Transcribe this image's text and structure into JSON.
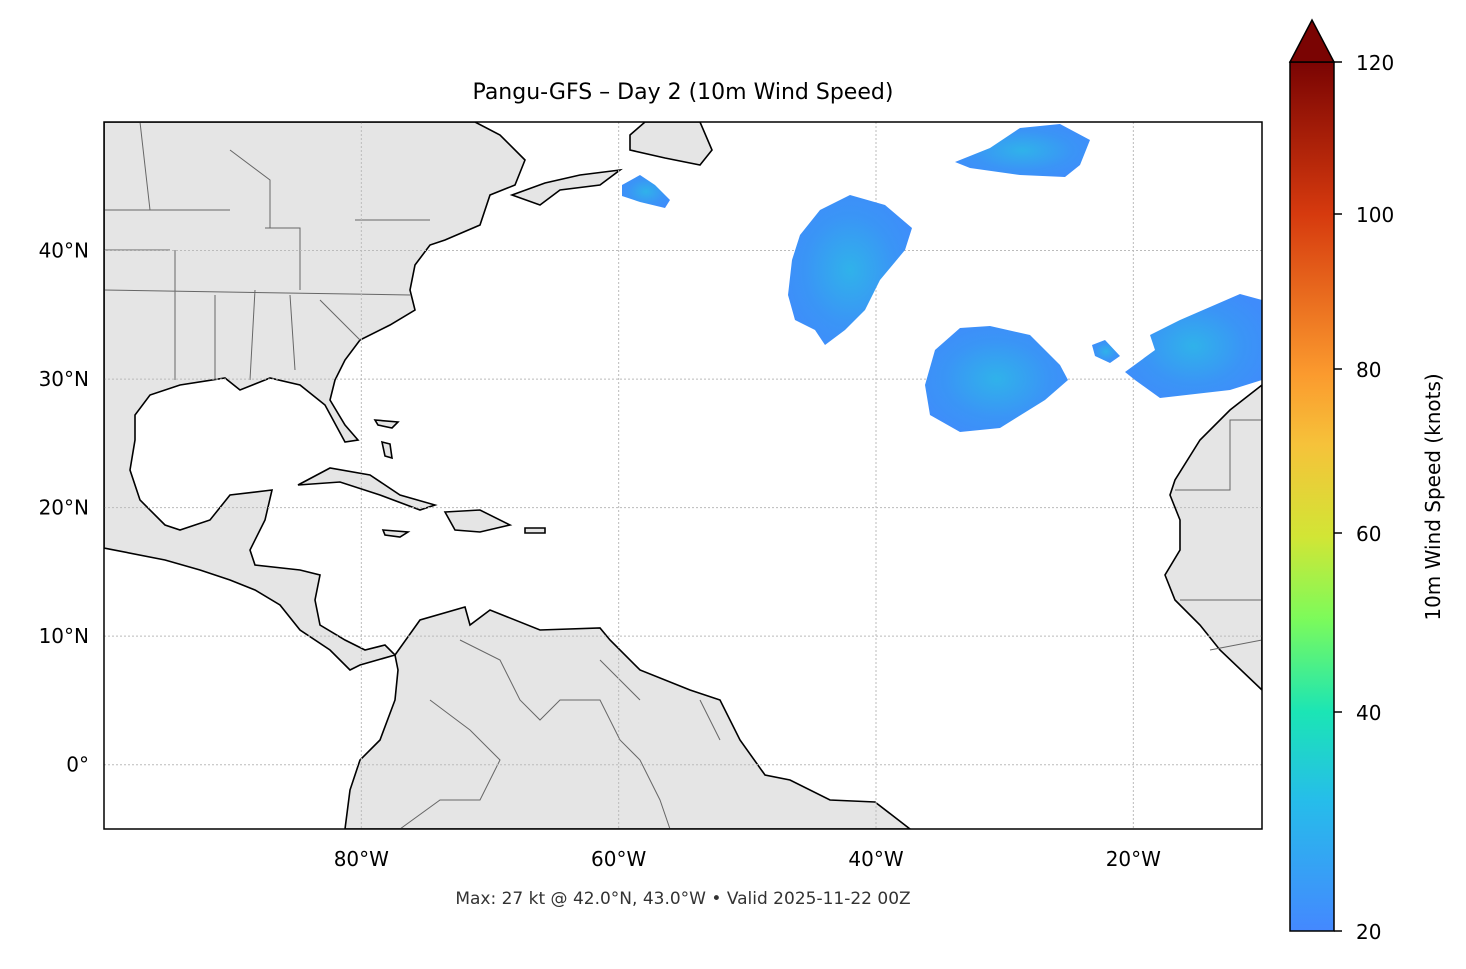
{
  "title": "Pangu-GFS – Day 2 (10m Wind Speed)",
  "footer": "Max: 27 kt @ 42.0°N, 43.0°W • Valid 2025-11-22 00Z",
  "map": {
    "extent_lon": [
      -100,
      -10
    ],
    "extent_lat": [
      -5,
      50
    ],
    "lon_ticks": [
      {
        "value": -80,
        "label": "80°W"
      },
      {
        "value": -60,
        "label": "60°W"
      },
      {
        "value": -40,
        "label": "40°W"
      },
      {
        "value": -20,
        "label": "20°W"
      }
    ],
    "lat_ticks": [
      {
        "value": 40,
        "label": "40°N"
      },
      {
        "value": 30,
        "label": "30°N"
      },
      {
        "value": 20,
        "label": "20°N"
      },
      {
        "value": 10,
        "label": "10°N"
      },
      {
        "value": 0,
        "label": "0°"
      }
    ],
    "land_color": "#e5e5e5",
    "grid": "dotted"
  },
  "colorbar": {
    "label": "10m Wind Speed (knots)",
    "ticks": [
      "120",
      "100",
      "80",
      "60",
      "40",
      "20"
    ],
    "range": [
      20,
      120
    ],
    "extend": "max",
    "colormap": "turbo"
  }
}
